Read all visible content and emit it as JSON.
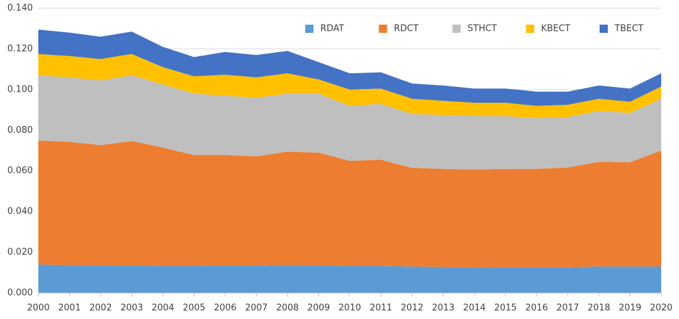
{
  "chart_data": {
    "type": "stacked_area",
    "x": [
      2000,
      2001,
      2002,
      2003,
      2004,
      2005,
      2006,
      2007,
      2008,
      2009,
      2010,
      2011,
      2012,
      2013,
      2014,
      2015,
      2016,
      2017,
      2018,
      2019,
      2020
    ],
    "xlim": [
      2000,
      2020
    ],
    "series": [
      {
        "name": "RDAT",
        "color": "#5b9bd5",
        "values": [
          0.014,
          0.0137,
          0.0135,
          0.0135,
          0.0133,
          0.0133,
          0.0135,
          0.0135,
          0.0137,
          0.0135,
          0.0133,
          0.0133,
          0.013,
          0.0128,
          0.0125,
          0.0127,
          0.0127,
          0.0127,
          0.013,
          0.013,
          0.013
        ]
      },
      {
        "name": "RDCT",
        "color": "#ed7d31",
        "values": [
          0.061,
          0.0606,
          0.0592,
          0.0612,
          0.0582,
          0.0545,
          0.0543,
          0.0537,
          0.0558,
          0.0555,
          0.0517,
          0.0522,
          0.0485,
          0.0482,
          0.0482,
          0.0483,
          0.0483,
          0.049,
          0.0515,
          0.0513,
          0.057
        ]
      },
      {
        "name": "STHCT",
        "color": "#bfbfbf",
        "values": [
          0.032,
          0.0317,
          0.0318,
          0.0323,
          0.031,
          0.0302,
          0.0292,
          0.0288,
          0.0285,
          0.029,
          0.027,
          0.0275,
          0.0265,
          0.0265,
          0.0263,
          0.026,
          0.025,
          0.0248,
          0.025,
          0.0242,
          0.0255
        ]
      },
      {
        "name": "KBECT",
        "color": "#ffc000",
        "values": [
          0.0105,
          0.0105,
          0.0105,
          0.0105,
          0.0085,
          0.0085,
          0.0103,
          0.01,
          0.01,
          0.007,
          0.008,
          0.0075,
          0.0075,
          0.007,
          0.0065,
          0.0065,
          0.006,
          0.006,
          0.006,
          0.0055,
          0.006
        ]
      },
      {
        "name": "TBECT",
        "color": "#4472c4",
        "values": [
          0.012,
          0.0115,
          0.011,
          0.011,
          0.01,
          0.0095,
          0.0112,
          0.011,
          0.011,
          0.0085,
          0.008,
          0.008,
          0.0075,
          0.0075,
          0.007,
          0.007,
          0.007,
          0.0065,
          0.0065,
          0.0065,
          0.0065
        ]
      }
    ],
    "ylim": [
      0,
      0.14
    ],
    "yticks": [
      {
        "value": 0,
        "label": "0.000"
      },
      {
        "value": 0.02,
        "label": "0.020"
      },
      {
        "value": 0.04,
        "label": "0.040"
      },
      {
        "value": 0.06,
        "label": "0.060"
      },
      {
        "value": 0.08,
        "label": "0.080"
      },
      {
        "value": 0.1,
        "label": "0.100"
      },
      {
        "value": 0.12,
        "label": "0.120"
      },
      {
        "value": 0.14,
        "label": "0.140"
      }
    ],
    "grid": true,
    "legend": "top-right"
  }
}
